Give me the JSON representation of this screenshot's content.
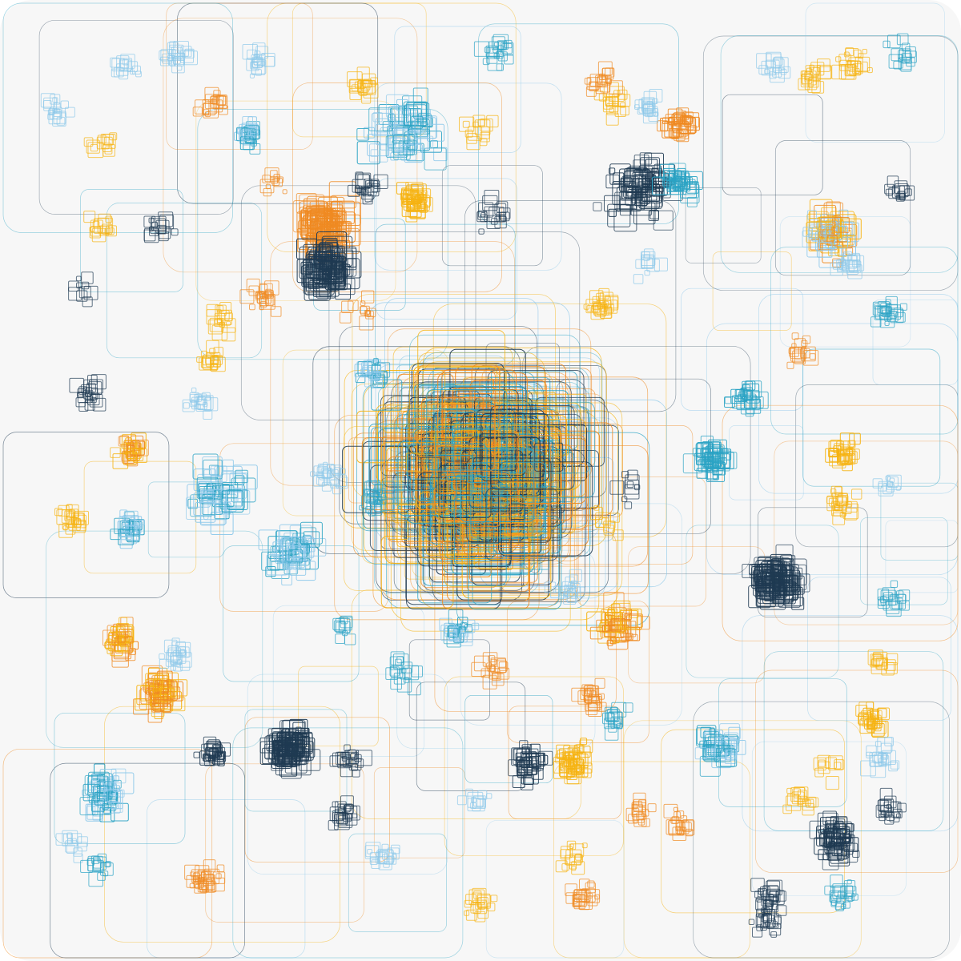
{
  "artwork": {
    "kind": "generative-rounded-square-clusters",
    "background_color": "#f7f7f7",
    "palette": {
      "navy": "#1f3a52",
      "teal": "#2ba3c4",
      "sky": "#8fc9ea",
      "orange": "#ef8a22",
      "amber": "#f6b312"
    },
    "clusters": [
      {
        "name": "center-core",
        "colors": [
          "amber",
          "orange",
          "navy",
          "teal"
        ],
        "density": "very-high"
      },
      {
        "name": "upper-left-orange-navy",
        "colors": [
          "orange",
          "navy"
        ],
        "density": "high"
      },
      {
        "name": "upper-mid-yellow",
        "colors": [
          "amber"
        ],
        "density": "medium"
      },
      {
        "name": "upper-mid-teal",
        "colors": [
          "teal",
          "sky"
        ],
        "density": "medium"
      },
      {
        "name": "upper-right-orange",
        "colors": [
          "orange"
        ],
        "density": "medium"
      },
      {
        "name": "upper-right-navy-teal",
        "colors": [
          "navy",
          "teal"
        ],
        "density": "medium"
      },
      {
        "name": "right-amber-sky",
        "colors": [
          "amber",
          "orange",
          "sky"
        ],
        "density": "medium"
      },
      {
        "name": "right-teal",
        "colors": [
          "teal"
        ],
        "density": "medium"
      },
      {
        "name": "right-navy",
        "colors": [
          "navy"
        ],
        "density": "high"
      },
      {
        "name": "lower-left-navy",
        "colors": [
          "navy"
        ],
        "density": "high"
      },
      {
        "name": "lower-mid-amber",
        "colors": [
          "amber"
        ],
        "density": "medium"
      },
      {
        "name": "lower-right-navy",
        "colors": [
          "navy"
        ],
        "density": "medium"
      },
      {
        "name": "left-orange",
        "colors": [
          "orange",
          "amber"
        ],
        "density": "medium"
      },
      {
        "name": "left-teal-sky",
        "colors": [
          "teal",
          "sky"
        ],
        "density": "medium"
      },
      {
        "name": "scattered-small",
        "colors": [
          "navy",
          "teal",
          "sky",
          "orange",
          "amber"
        ],
        "density": "low"
      }
    ]
  }
}
